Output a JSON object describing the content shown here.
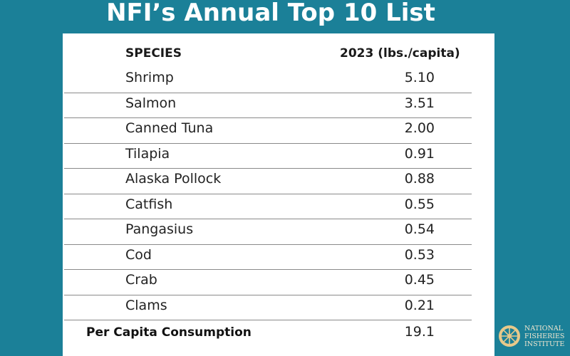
{
  "title": "NFI’s Annual Top 10 List",
  "table": {
    "headers": [
      "SPECIES",
      "2023 (lbs./capita)"
    ],
    "rows": [
      {
        "species": "Shrimp",
        "value": "5.10"
      },
      {
        "species": "Salmon",
        "value": "3.51"
      },
      {
        "species": "Canned Tuna",
        "value": "2.00"
      },
      {
        "species": "Tilapia",
        "value": "0.91"
      },
      {
        "species": "Alaska Pollock",
        "value": "0.88"
      },
      {
        "species": "Catfish",
        "value": "0.55"
      },
      {
        "species": "Pangasius",
        "value": "0.54"
      },
      {
        "species": "Cod",
        "value": "0.53"
      },
      {
        "species": "Crab",
        "value": "0.45"
      },
      {
        "species": "Clams",
        "value": "0.21"
      }
    ],
    "total_label": "Per Capita Consumption",
    "total_value": "19.1"
  },
  "logo": {
    "lines": [
      "NATIONAL",
      "FISHERIES",
      "INSTITUTE"
    ],
    "icon": "ship-wheel-icon"
  },
  "colors": {
    "background": "#1b8098",
    "card": "#ffffff",
    "logo_gold": "#e8c98a"
  }
}
